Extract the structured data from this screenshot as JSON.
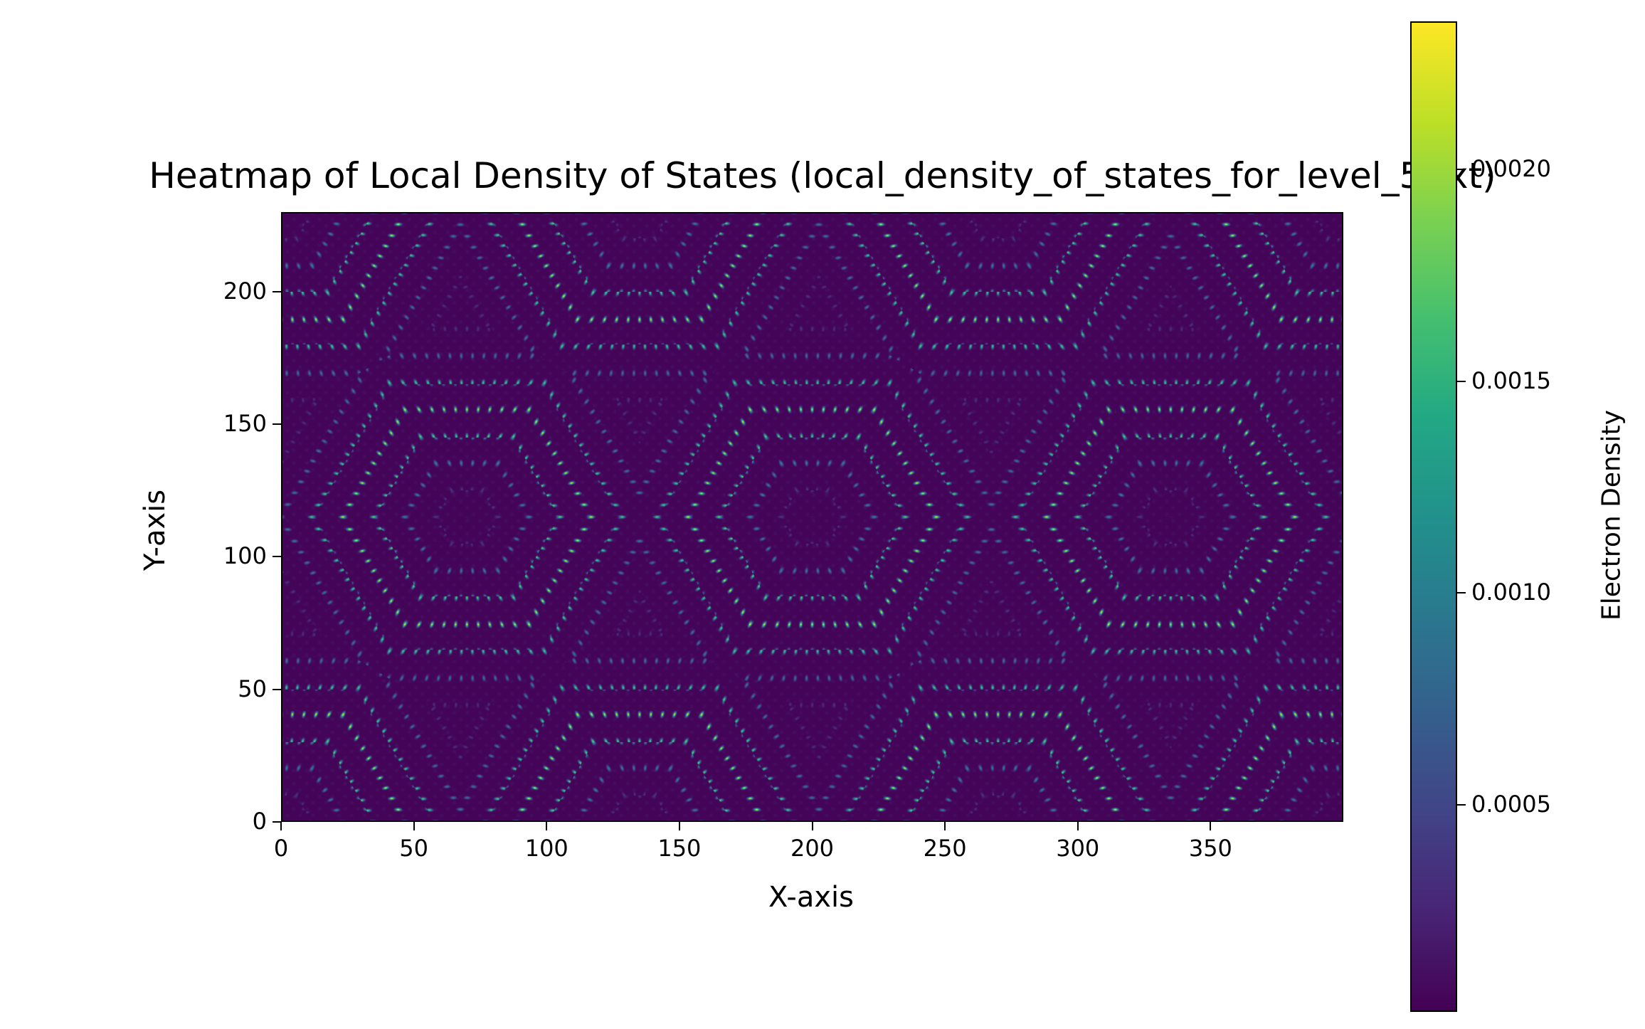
{
  "chart_data": {
    "type": "heatmap",
    "title": "Heatmap of Local Density of States (local_density_of_states_for_level_5.txt)",
    "xlabel": "X-axis",
    "ylabel": "Y-axis",
    "xlim": [
      0,
      400
    ],
    "ylim": [
      0,
      230
    ],
    "x_ticks": [
      0,
      50,
      100,
      150,
      200,
      250,
      300,
      350
    ],
    "x_tick_labels": [
      "0",
      "50",
      "100",
      "150",
      "200",
      "250",
      "300",
      "350"
    ],
    "y_ticks": [
      0,
      50,
      100,
      150,
      200
    ],
    "y_tick_labels": [
      "0",
      "50",
      "100",
      "150",
      "200"
    ],
    "colormap": "viridis",
    "colorbar": {
      "label": "Electron Density",
      "range": [
        1e-05,
        0.00235
      ],
      "ticks": [
        0.0005,
        0.001,
        0.0015,
        0.002
      ],
      "tick_labels": [
        "0.0005",
        "0.0010",
        "0.0015",
        "0.0020"
      ]
    },
    "pattern": {
      "description_of_data": "hexagonal lattice of concentric hexagonal rings of bright spots",
      "cell_centers": [
        [
          70,
          115
        ],
        [
          200,
          115
        ],
        [
          335,
          115
        ],
        [
          0,
          0
        ],
        [
          135,
          0
        ],
        [
          270,
          0
        ],
        [
          400,
          0
        ],
        [
          0,
          230
        ],
        [
          135,
          230
        ],
        [
          270,
          230
        ],
        [
          400,
          230
        ]
      ],
      "max_density": 0.00235,
      "background_density": 3e-05
    }
  }
}
